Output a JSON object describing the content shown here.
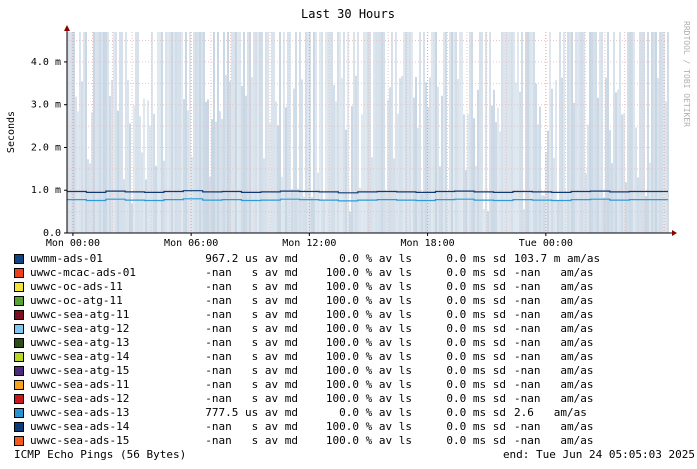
{
  "chart_data": {
    "type": "line",
    "title": "Last 30 Hours",
    "ylabel": "Seconds",
    "watermark": "RRDTOOL / TOBI OETIKER",
    "ylim": [
      0,
      4.7
    ],
    "y_ticks": [
      {
        "value": 0,
        "label": "0.0"
      },
      {
        "value": 1,
        "label": "1.0 m"
      },
      {
        "value": 2,
        "label": "2.0 m"
      },
      {
        "value": 3,
        "label": "3.0 m"
      },
      {
        "value": 4,
        "label": "4.0 m"
      }
    ],
    "xlim_hours": [
      -0.3,
      30.2
    ],
    "x_ticks": [
      {
        "value": 0,
        "label": "Mon 00:00"
      },
      {
        "value": 6,
        "label": "Mon 06:00"
      },
      {
        "value": 12,
        "label": "Mon 12:00"
      },
      {
        "value": 18,
        "label": "Mon 18:00"
      },
      {
        "value": 24,
        "label": "Tue 00:00"
      }
    ],
    "series": [
      {
        "name": "uwmm-ads-01",
        "median": [
          0.97,
          0.95,
          0.98,
          0.96,
          0.95,
          0.97,
          0.99,
          0.96,
          0.97,
          0.95,
          0.96,
          0.98,
          0.97,
          0.96,
          0.94,
          0.96,
          0.97,
          0.96,
          0.95,
          0.97,
          0.98,
          0.96,
          0.95,
          0.97,
          0.96,
          0.95,
          0.97,
          0.98,
          0.96,
          0.97,
          0.97
        ]
      },
      {
        "name": "uwwc-sea-ads-13",
        "median": [
          0.78,
          0.76,
          0.79,
          0.77,
          0.76,
          0.78,
          0.8,
          0.77,
          0.78,
          0.76,
          0.77,
          0.79,
          0.78,
          0.77,
          0.75,
          0.77,
          0.78,
          0.77,
          0.76,
          0.78,
          0.79,
          0.77,
          0.76,
          0.78,
          0.77,
          0.76,
          0.78,
          0.79,
          0.77,
          0.78,
          0.78
        ]
      }
    ],
    "colors": {
      "smoke": "#c8d6e4",
      "grid_major": "#e29a9a",
      "grid_minor": "#e6c4c4",
      "series_1": "#0d3a73",
      "series_2": "#2d9bd8"
    }
  },
  "legend": [
    {
      "color": "#0f4480",
      "name": "uwmm-ads-01",
      "avg": "967.2 us av md",
      "loss": "0.0 % av ls",
      "sd": "0.0 ms sd",
      "amas": "103.7 m am/as"
    },
    {
      "color": "#ee3f1c",
      "name": "uwwc-mcac-ads-01",
      "avg": "-nan   s av md",
      "loss": "100.0 % av ls",
      "sd": "0.0 ms sd",
      "amas": "-nan   am/as"
    },
    {
      "color": "#f2e434",
      "name": "uwwc-oc-ads-11",
      "avg": "-nan   s av md",
      "loss": "100.0 % av ls",
      "sd": "0.0 ms sd",
      "amas": "-nan   am/as"
    },
    {
      "color": "#56a333",
      "name": "uwwc-oc-atg-11",
      "avg": "-nan   s av md",
      "loss": "100.0 % av ls",
      "sd": "0.0 ms sd",
      "amas": "-nan   am/as"
    },
    {
      "color": "#7d0e22",
      "name": "uwwc-sea-atg-11",
      "avg": "-nan   s av md",
      "loss": "100.0 % av ls",
      "sd": "0.0 ms sd",
      "amas": "-nan   am/as"
    },
    {
      "color": "#7ec7f0",
      "name": "uwwc-sea-atg-12",
      "avg": "-nan   s av md",
      "loss": "100.0 % av ls",
      "sd": "0.0 ms sd",
      "amas": "-nan   am/as"
    },
    {
      "color": "#2d4e1a",
      "name": "uwwc-sea-atg-13",
      "avg": "-nan   s av md",
      "loss": "100.0 % av ls",
      "sd": "0.0 ms sd",
      "amas": "-nan   am/as"
    },
    {
      "color": "#b7d625",
      "name": "uwwc-sea-atg-14",
      "avg": "-nan   s av md",
      "loss": "100.0 % av ls",
      "sd": "0.0 ms sd",
      "amas": "-nan   am/as"
    },
    {
      "color": "#4e2a7a",
      "name": "uwwc-sea-atg-15",
      "avg": "-nan   s av md",
      "loss": "100.0 % av ls",
      "sd": "0.0 ms sd",
      "amas": "-nan   am/as"
    },
    {
      "color": "#f5a31c",
      "name": "uwwc-sea-ads-11",
      "avg": "-nan   s av md",
      "loss": "100.0 % av ls",
      "sd": "0.0 ms sd",
      "amas": "-nan   am/as"
    },
    {
      "color": "#c8171d",
      "name": "uwwc-sea-ads-12",
      "avg": "-nan   s av md",
      "loss": "100.0 % av ls",
      "sd": "0.0 ms sd",
      "amas": "-nan   am/as"
    },
    {
      "color": "#2b92d0",
      "name": "uwwc-sea-ads-13",
      "avg": "777.5 us av md",
      "loss": "0.0 % av ls",
      "sd": "0.0 ms sd",
      "amas": "2.6   am/as"
    },
    {
      "color": "#0b3d7a",
      "name": "uwwc-sea-ads-14",
      "avg": "-nan   s av md",
      "loss": "100.0 % av ls",
      "sd": "0.0 ms sd",
      "amas": "-nan   am/as"
    },
    {
      "color": "#f25a1e",
      "name": "uwwc-sea-ads-15",
      "avg": "-nan   s av md",
      "loss": "100.0 % av ls",
      "sd": "0.0 ms sd",
      "amas": "-nan   am/as"
    }
  ],
  "footer": {
    "left": "ICMP Echo Pings (56 Bytes)",
    "right": "end: Tue Jun 24 05:05:03 2025"
  }
}
